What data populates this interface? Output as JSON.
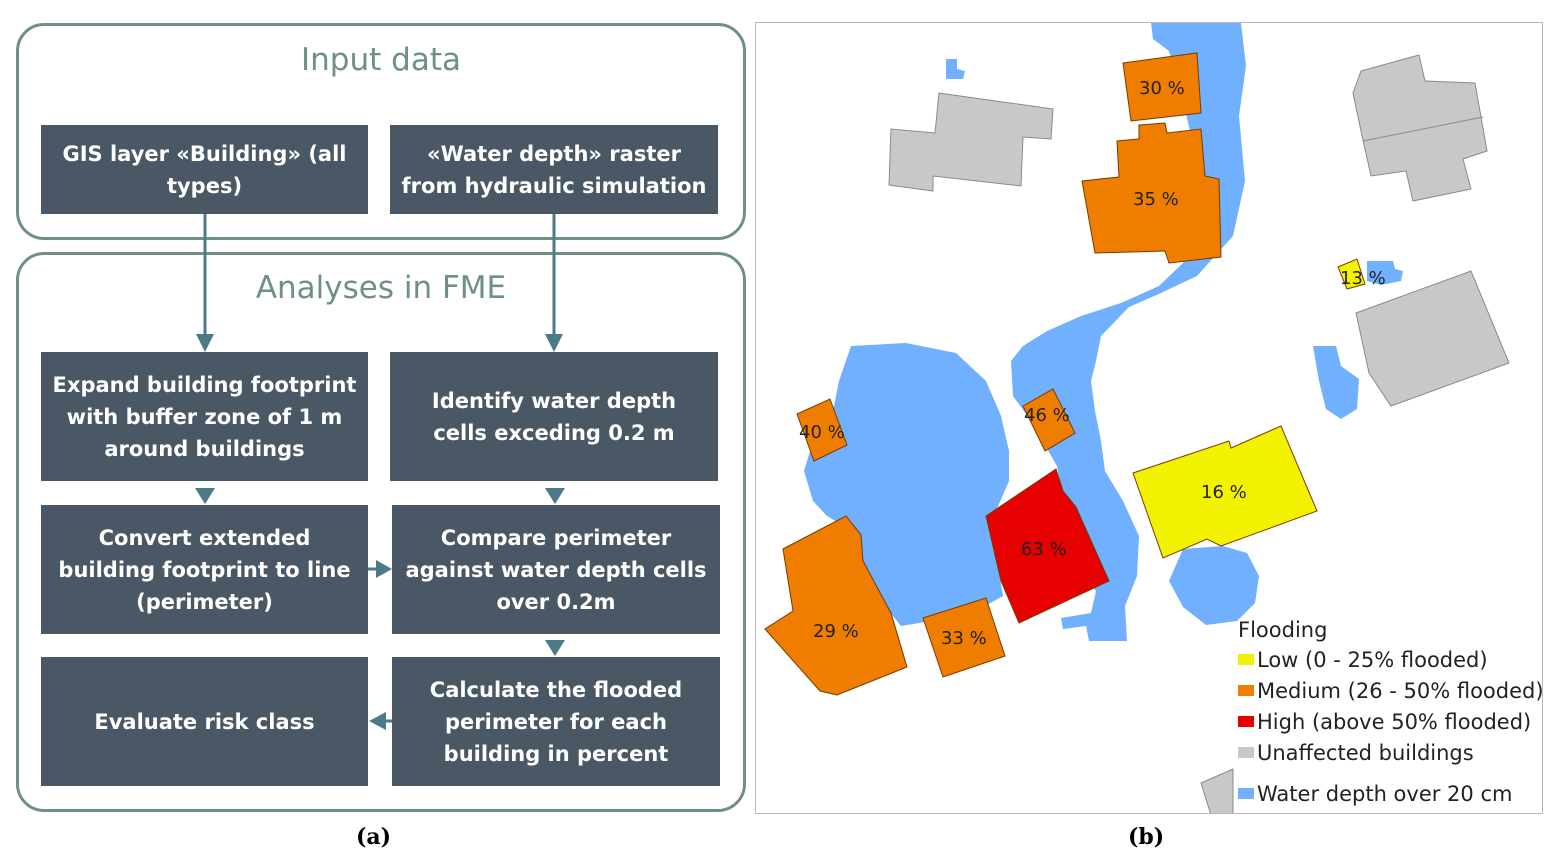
{
  "panel_a": {
    "caption": "(a)",
    "input_group_title": "Input data",
    "analyses_group_title": "Analyses in FME",
    "boxes": {
      "gis_layer": "GIS layer «Building» (all types)",
      "water_raster": "«Water depth» raster from hydraulic simulation",
      "expand_footprint": "Expand building footprint with buffer zone of 1 m around buildings",
      "identify_cells": "Identify water depth cells exceding 0.2 m",
      "convert_perimeter": "Convert extended building footprint to line (perimeter)",
      "compare_perimeter": "Compare perimeter against water depth cells over 0.2m",
      "evaluate_risk": "Evaluate risk class",
      "calculate_flooded": "Calculate the flooded perimeter for each building in percent"
    }
  },
  "panel_b": {
    "caption": "(b)",
    "buildings": [
      {
        "label": "30 %",
        "class": "medium"
      },
      {
        "label": "35 %",
        "class": "medium"
      },
      {
        "label": "13 %",
        "class": "low"
      },
      {
        "label": "40 %",
        "class": "medium"
      },
      {
        "label": "46 %",
        "class": "medium"
      },
      {
        "label": "16 %",
        "class": "low"
      },
      {
        "label": "63 %",
        "class": "high"
      },
      {
        "label": "29 %",
        "class": "medium"
      },
      {
        "label": "33 %",
        "class": "medium"
      }
    ],
    "legend": {
      "title": "Flooding",
      "items": [
        {
          "label": "Low (0 - 25% flooded)",
          "color": "#f2f200"
        },
        {
          "label": "Medium (26 - 50% flooded)",
          "color": "#ef7d00"
        },
        {
          "label": "High (above 50% flooded)",
          "color": "#e60000"
        },
        {
          "label": "Unaffected buildings",
          "color": "#c8c8c8"
        },
        {
          "label": "Water depth over 20 cm",
          "color": "#70b0ff"
        }
      ]
    }
  },
  "colors": {
    "box": "#4a5866",
    "group_border": "#6e9088",
    "water": "#70b0ff",
    "low": "#f2f200",
    "medium": "#ef7d00",
    "high": "#e60000",
    "unaffected": "#c8c8c8"
  }
}
